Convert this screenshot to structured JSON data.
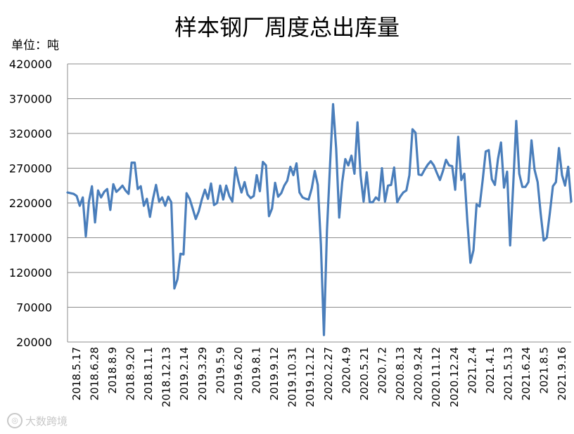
{
  "chart_data": {
    "type": "line",
    "title": "样本钢厂周度总出库量",
    "unit_label": "单位：吨",
    "ylim": [
      20000,
      420000
    ],
    "y_ticks": [
      20000,
      70000,
      120000,
      170000,
      220000,
      270000,
      320000,
      370000,
      420000
    ],
    "x_tick_labels": [
      "2018.5.17",
      "2018.6.28",
      "2018.8.9",
      "2018.9.20",
      "2018.11.1",
      "2018.12.13",
      "2019.2.14",
      "2019.3.29",
      "2019.5.9",
      "2019.6.20",
      "2019.8.1",
      "2019.9.12",
      "2019.10.31",
      "2019.12.12",
      "2020.2.27",
      "2020.4.9",
      "2020.5.21",
      "2020.7.2",
      "2020.8.13",
      "2020.9.24",
      "2020.11.12",
      "2020.12.24",
      "2021.2.4",
      "2021.4.1",
      "2021.5.13",
      "2021.6.24",
      "2021.8.5",
      "2021.9.16"
    ],
    "grid": "horizontal",
    "series": [
      {
        "name": "",
        "color": "#4a7ebb",
        "values": [
          235000,
          234000,
          233000,
          230000,
          216000,
          228000,
          172000,
          222000,
          244000,
          192000,
          238000,
          228000,
          236000,
          240000,
          210000,
          247000,
          236000,
          240000,
          245000,
          238000,
          233000,
          278000,
          278000,
          240000,
          244000,
          216000,
          226000,
          200000,
          226000,
          246000,
          222000,
          228000,
          216000,
          229000,
          221000,
          97000,
          110000,
          147000,
          146000,
          234000,
          226000,
          212000,
          197000,
          208000,
          225000,
          239000,
          226000,
          248000,
          217000,
          220000,
          245000,
          225000,
          245000,
          230000,
          222000,
          271000,
          251000,
          235000,
          250000,
          232000,
          227000,
          230000,
          260000,
          237000,
          279000,
          274000,
          201000,
          212000,
          249000,
          229000,
          234000,
          245000,
          252000,
          272000,
          260000,
          277000,
          235000,
          228000,
          226000,
          225000,
          241000,
          266000,
          246000,
          160000,
          30000,
          180000,
          275000,
          362000,
          298000,
          199000,
          250000,
          283000,
          274000,
          288000,
          262000,
          336000,
          260000,
          222000,
          264000,
          221000,
          221000,
          228000,
          224000,
          270000,
          222000,
          245000,
          246000,
          271000,
          221000,
          229000,
          235000,
          238000,
          260000,
          326000,
          321000,
          261000,
          260000,
          268000,
          275000,
          280000,
          274000,
          263000,
          253000,
          266000,
          282000,
          274000,
          273000,
          239000,
          315000,
          253000,
          262000,
          192000,
          134000,
          152000,
          218000,
          215000,
          253000,
          294000,
          296000,
          254000,
          246000,
          283000,
          307000,
          242000,
          265000,
          159000,
          246000,
          338000,
          262000,
          243000,
          243000,
          250000,
          310000,
          268000,
          250000,
          205000,
          166000,
          170000,
          205000,
          244000,
          250000,
          299000,
          260000,
          245000,
          272000,
          222000
        ]
      }
    ]
  },
  "watermark": {
    "icon": "watermark-logo-icon",
    "text": "大数跨境"
  }
}
